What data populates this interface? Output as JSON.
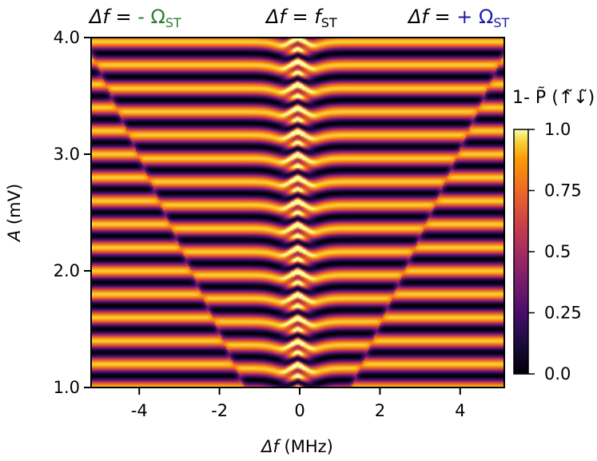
{
  "chart_data": {
    "type": "heatmap",
    "xlabel": {
      "prefix": "Δf",
      "suffix": " (MHz)"
    },
    "ylabel": {
      "prefix": "A",
      "suffix": " (mV)"
    },
    "xlim": [
      -5.2,
      5.1
    ],
    "ylim": [
      1.0,
      4.0
    ],
    "x_ticks": [
      -4,
      -2,
      0,
      2,
      4
    ],
    "x_tick_labels": [
      "-4",
      "-2",
      "0",
      "2",
      "4"
    ],
    "y_ticks": [
      1.0,
      2.0,
      3.0,
      4.0
    ],
    "y_tick_labels": [
      "1.0",
      "2.0",
      "3.0",
      "4.0"
    ],
    "colorbar": {
      "label": "1- P̃ (↑̃↓̃)",
      "range": [
        0.0,
        1.0
      ],
      "ticks": [
        0.0,
        0.25,
        0.5,
        0.75,
        1.0
      ],
      "tick_labels": [
        "0.0",
        "0.25",
        "0.5",
        "0.75",
        "1.0"
      ],
      "colormap": "inferno"
    },
    "annotations": [
      {
        "text_prefix": "Δf = ",
        "text_main": "- Ω",
        "subscript": "ST",
        "color": "#2e7d32",
        "position": "top-left"
      },
      {
        "text_prefix": "Δf = ",
        "text_main": "f",
        "subscript": "ST",
        "color": "#000000",
        "position": "top-center"
      },
      {
        "text_prefix": "Δf = ",
        "text_main": "+ Ω",
        "subscript": "ST",
        "color": "#1a1aa8",
        "position": "top-right"
      }
    ],
    "pattern": {
      "description_values": "horizontal Rabi-type oscillation fringes vs amplitude A; chevron centered at f_ST ≈ -0.05 MHz; two V-shaped resonance lines at ±Ω_ST widening with A",
      "fringe_period_mV": 0.2,
      "center_MHz": -0.05,
      "sideline_slope_MHz_per_mV": 1.33,
      "sideline_offset_MHz": 0.0
    }
  }
}
